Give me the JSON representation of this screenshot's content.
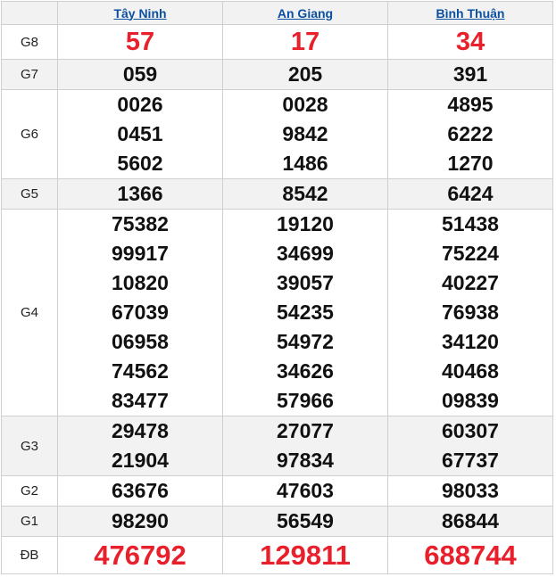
{
  "provinces": [
    "Tây Ninh",
    "An Giang",
    "Bình Thuận"
  ],
  "colors": {
    "special": "#e8202b",
    "link": "#0b4fa0",
    "stripe": "#f2f2f2"
  },
  "prizes": [
    {
      "label": "G8",
      "values": [
        [
          "57"
        ],
        [
          "17"
        ],
        [
          "34"
        ]
      ]
    },
    {
      "label": "G7",
      "values": [
        [
          "059"
        ],
        [
          "205"
        ],
        [
          "391"
        ]
      ]
    },
    {
      "label": "G6",
      "values": [
        [
          "0026",
          "0451",
          "5602"
        ],
        [
          "0028",
          "9842",
          "1486"
        ],
        [
          "4895",
          "6222",
          "1270"
        ]
      ]
    },
    {
      "label": "G5",
      "values": [
        [
          "1366"
        ],
        [
          "8542"
        ],
        [
          "6424"
        ]
      ]
    },
    {
      "label": "G4",
      "values": [
        [
          "75382",
          "99917",
          "10820",
          "67039",
          "06958",
          "74562",
          "83477"
        ],
        [
          "19120",
          "34699",
          "39057",
          "54235",
          "54972",
          "34626",
          "57966"
        ],
        [
          "51438",
          "75224",
          "40227",
          "76938",
          "34120",
          "40468",
          "09839"
        ]
      ]
    },
    {
      "label": "G3",
      "values": [
        [
          "29478",
          "21904"
        ],
        [
          "27077",
          "97834"
        ],
        [
          "60307",
          "67737"
        ]
      ]
    },
    {
      "label": "G2",
      "values": [
        [
          "63676"
        ],
        [
          "47603"
        ],
        [
          "98033"
        ]
      ]
    },
    {
      "label": "G1",
      "values": [
        [
          "98290"
        ],
        [
          "56549"
        ],
        [
          "86844"
        ]
      ]
    },
    {
      "label": "ĐB",
      "values": [
        [
          "476792"
        ],
        [
          "129811"
        ],
        [
          "688744"
        ]
      ]
    }
  ]
}
